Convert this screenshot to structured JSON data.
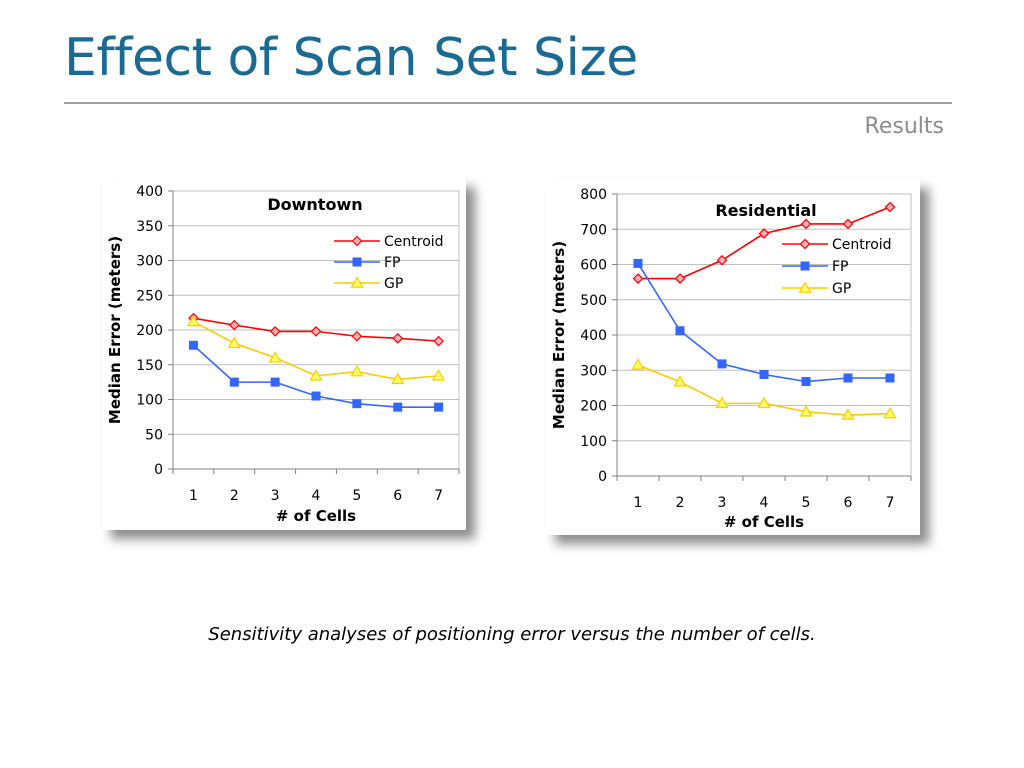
{
  "slide": {
    "title": "Effect of Scan Set Size",
    "section": "Results",
    "caption": "Sensitivity analyses of positioning error versus the number of cells."
  },
  "colors": {
    "title": "#1a6a93",
    "centroid": "#ff0000",
    "centroid_fill": "#ffb0b8",
    "fp": "#3366ff",
    "gp": "#ffcc00",
    "gp_fill": "#ffff66",
    "grid": "#c0c0c0"
  },
  "chart_data": [
    {
      "type": "line",
      "title": "Downtown",
      "xlabel": "# of Cells",
      "ylabel": "Median Error (meters)",
      "x": [
        1,
        2,
        3,
        4,
        5,
        6,
        7
      ],
      "ylim": [
        0,
        400
      ],
      "yticks": [
        0,
        50,
        100,
        150,
        200,
        250,
        300,
        350,
        400
      ],
      "grid": true,
      "legend_position": "top-right",
      "series": [
        {
          "name": "Centroid",
          "marker": "diamond",
          "values": [
            217,
            207,
            198,
            198,
            191,
            188,
            184
          ]
        },
        {
          "name": "FP",
          "marker": "square",
          "values": [
            178,
            125,
            125,
            105,
            94,
            89,
            89
          ]
        },
        {
          "name": "GP",
          "marker": "triangle",
          "values": [
            212,
            181,
            160,
            134,
            140,
            129,
            134
          ]
        }
      ]
    },
    {
      "type": "line",
      "title": "Residential",
      "xlabel": "# of Cells",
      "ylabel": "Median Error (meters)",
      "x": [
        1,
        2,
        3,
        4,
        5,
        6,
        7
      ],
      "ylim": [
        0,
        800
      ],
      "yticks": [
        0,
        100,
        200,
        300,
        400,
        500,
        600,
        700,
        800
      ],
      "grid": true,
      "legend_position": "top-right",
      "series": [
        {
          "name": "Centroid",
          "marker": "diamond",
          "values": [
            560,
            560,
            612,
            688,
            715,
            715,
            763
          ]
        },
        {
          "name": "FP",
          "marker": "square",
          "values": [
            603,
            412,
            318,
            288,
            268,
            278,
            278
          ]
        },
        {
          "name": "GP",
          "marker": "triangle",
          "values": [
            315,
            267,
            206,
            206,
            182,
            173,
            177
          ]
        }
      ]
    }
  ]
}
